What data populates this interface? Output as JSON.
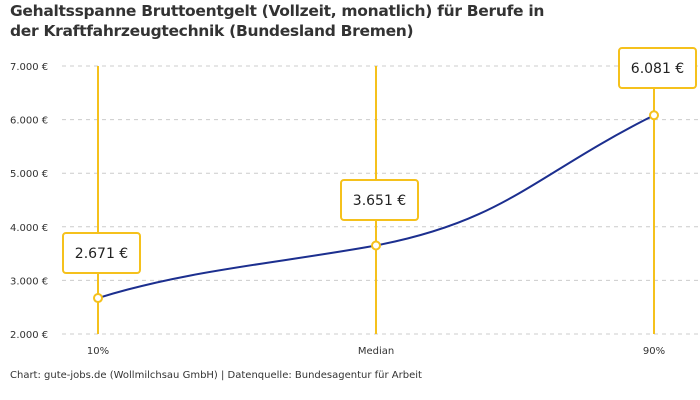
{
  "title": "Gehaltsspanne Bruttoentgelt (Vollzeit, monatlich) für Berufe in der Kraftfahrzeugtechnik (Bundesland Bremen)",
  "credit": "Chart: gute-jobs.de (Wollmilchsau GmbH) | Datenquelle: Bundesagentur für Arbeit",
  "colors": {
    "line": "#1c2f8f",
    "marker": "#f5c11c",
    "grid": "#cccccc"
  },
  "chart_data": {
    "type": "line",
    "categories": [
      "10%",
      "Median",
      "90%"
    ],
    "values": [
      2671,
      3651,
      6081
    ],
    "value_labels": [
      "2.671 €",
      "3.651 €",
      "6.081 €"
    ],
    "ylim": [
      2000,
      7000
    ],
    "yticks": [
      2000,
      3000,
      4000,
      5000,
      6000,
      7000
    ],
    "ytick_labels": [
      "2.000 €",
      "3.000 €",
      "4.000 €",
      "5.000 €",
      "6.000 €",
      "7.000 €"
    ],
    "grid": true,
    "xlabel": "",
    "ylabel": ""
  }
}
